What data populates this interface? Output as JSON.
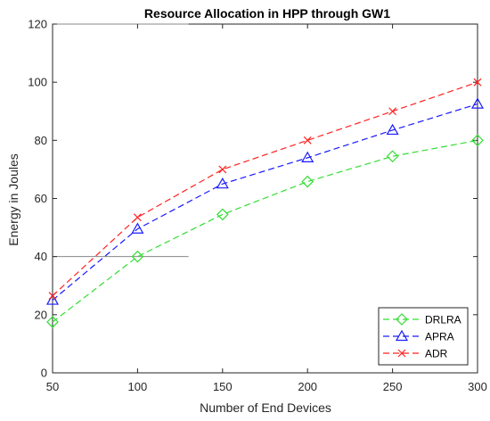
{
  "chart_data": {
    "type": "line",
    "title": "Resource Allocation in HPP through GW1",
    "xlabel": "Number of End Devices",
    "ylabel": "Energy in Joules",
    "x": [
      50,
      100,
      150,
      200,
      250,
      300
    ],
    "xlim": [
      50,
      300
    ],
    "ylim": [
      0,
      120
    ],
    "xticks": [
      50,
      100,
      150,
      200,
      250,
      300
    ],
    "yticks": [
      0,
      20,
      40,
      60,
      80,
      100,
      120
    ],
    "grid": false,
    "legend_position": "bottom-right",
    "series": [
      {
        "name": "DRLRA",
        "values": [
          17.5,
          40,
          54.5,
          65.8,
          74.5,
          80
        ],
        "color": "#33dd33",
        "marker": "diamond"
      },
      {
        "name": "APRA",
        "values": [
          25,
          49.5,
          65,
          74,
          83.5,
          92.5
        ],
        "color": "#1a1aff",
        "marker": "triangle"
      },
      {
        "name": "ADR",
        "values": [
          26.5,
          53.5,
          70,
          80,
          90,
          100
        ],
        "color": "#ff2222",
        "marker": "x"
      }
    ],
    "reference_lines": [
      {
        "y": 120,
        "x_range": [
          50,
          130
        ],
        "color": "#888888"
      },
      {
        "y": 40,
        "x_range": [
          50,
          130
        ],
        "color": "#888888"
      }
    ]
  }
}
